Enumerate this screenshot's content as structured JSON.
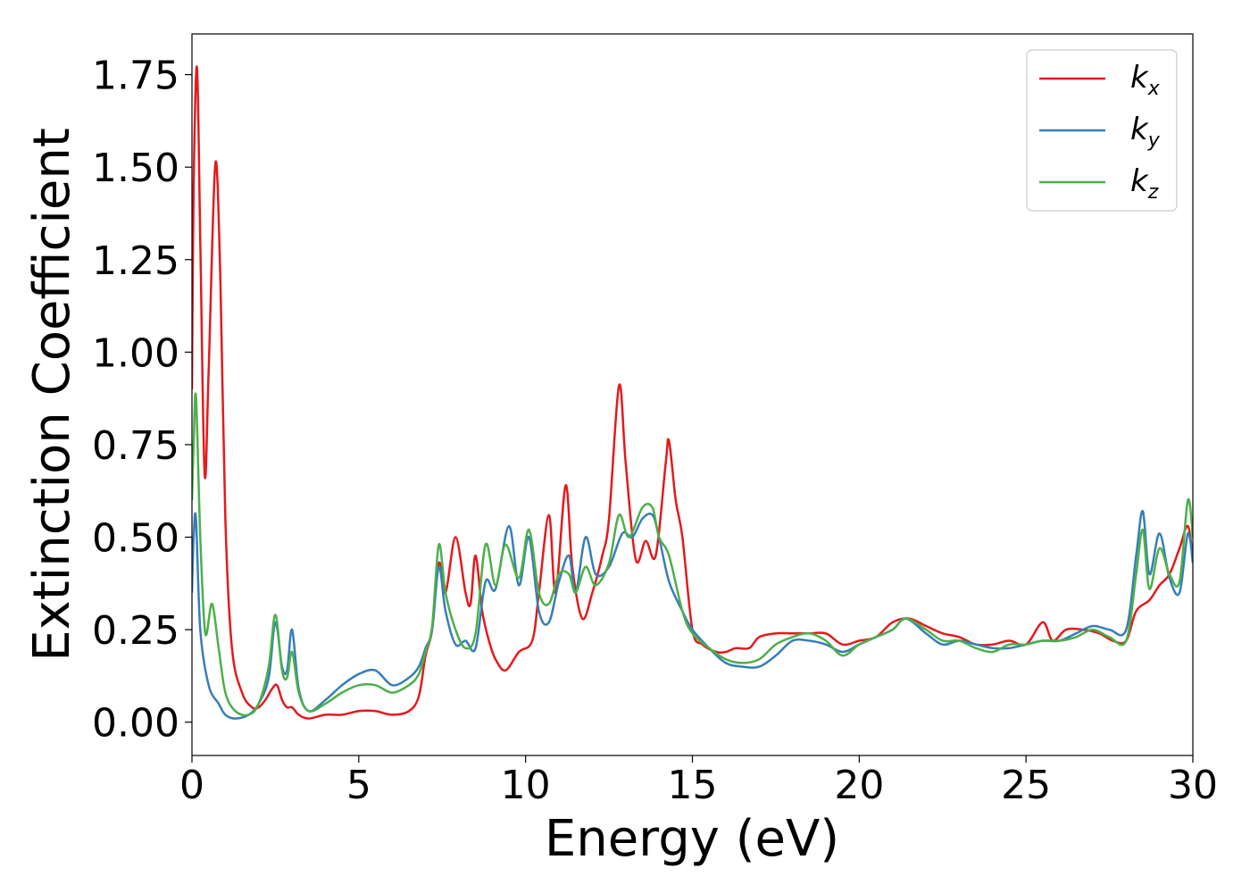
{
  "chart_data": {
    "type": "line",
    "xlabel": "Energy (eV)",
    "ylabel": "Extinction Coefficient",
    "xlim": [
      0,
      30
    ],
    "ylim": [
      -0.09,
      1.86
    ],
    "xticks": [
      0,
      5,
      10,
      15,
      20,
      25,
      30
    ],
    "xtick_labels": [
      "0",
      "5",
      "10",
      "15",
      "20",
      "25",
      "30"
    ],
    "yticks": [
      0,
      0.25,
      0.5,
      0.75,
      1.0,
      1.25,
      1.5,
      1.75
    ],
    "ytick_labels": [
      "0.00",
      "0.25",
      "0.50",
      "0.75",
      "1.00",
      "1.25",
      "1.50",
      "1.75"
    ],
    "grid": false,
    "legend_position": "top-right",
    "series": [
      {
        "name": "k_x",
        "legend_base": "k",
        "legend_sub": "x",
        "color": "#e41a1c",
        "points": [
          [
            0,
            0.9
          ],
          [
            0.05,
            1.45
          ],
          [
            0.15,
            1.77
          ],
          [
            0.25,
            1.3
          ],
          [
            0.38,
            0.67
          ],
          [
            0.5,
            0.95
          ],
          [
            0.7,
            1.51
          ],
          [
            0.85,
            1.2
          ],
          [
            1.0,
            0.55
          ],
          [
            1.2,
            0.2
          ],
          [
            1.5,
            0.08
          ],
          [
            1.8,
            0.04
          ],
          [
            2.0,
            0.04
          ],
          [
            2.2,
            0.06
          ],
          [
            2.4,
            0.09
          ],
          [
            2.55,
            0.1
          ],
          [
            2.7,
            0.06
          ],
          [
            2.85,
            0.04
          ],
          [
            3.0,
            0.04
          ],
          [
            3.2,
            0.02
          ],
          [
            3.5,
            0.01
          ],
          [
            4.0,
            0.02
          ],
          [
            4.5,
            0.02
          ],
          [
            5.0,
            0.03
          ],
          [
            5.5,
            0.03
          ],
          [
            6.0,
            0.02
          ],
          [
            6.5,
            0.03
          ],
          [
            6.8,
            0.07
          ],
          [
            7.0,
            0.18
          ],
          [
            7.2,
            0.25
          ],
          [
            7.4,
            0.43
          ],
          [
            7.6,
            0.35
          ],
          [
            7.9,
            0.5
          ],
          [
            8.2,
            0.35
          ],
          [
            8.35,
            0.32
          ],
          [
            8.5,
            0.45
          ],
          [
            8.7,
            0.3
          ],
          [
            8.9,
            0.22
          ],
          [
            9.1,
            0.17
          ],
          [
            9.4,
            0.14
          ],
          [
            9.8,
            0.19
          ],
          [
            10.2,
            0.22
          ],
          [
            10.4,
            0.35
          ],
          [
            10.7,
            0.56
          ],
          [
            10.9,
            0.35
          ],
          [
            11.2,
            0.64
          ],
          [
            11.4,
            0.42
          ],
          [
            11.7,
            0.28
          ],
          [
            12.0,
            0.35
          ],
          [
            12.3,
            0.45
          ],
          [
            12.5,
            0.55
          ],
          [
            12.8,
            0.91
          ],
          [
            13.0,
            0.7
          ],
          [
            13.3,
            0.44
          ],
          [
            13.6,
            0.49
          ],
          [
            13.9,
            0.45
          ],
          [
            14.2,
            0.7
          ],
          [
            14.3,
            0.76
          ],
          [
            14.5,
            0.6
          ],
          [
            14.7,
            0.5
          ],
          [
            15.0,
            0.25
          ],
          [
            15.3,
            0.21
          ],
          [
            15.7,
            0.19
          ],
          [
            16.0,
            0.19
          ],
          [
            16.3,
            0.2
          ],
          [
            16.7,
            0.2
          ],
          [
            17.0,
            0.23
          ],
          [
            17.5,
            0.24
          ],
          [
            18.0,
            0.24
          ],
          [
            18.5,
            0.24
          ],
          [
            19.0,
            0.24
          ],
          [
            19.5,
            0.21
          ],
          [
            20.0,
            0.22
          ],
          [
            20.5,
            0.23
          ],
          [
            21.0,
            0.27
          ],
          [
            21.5,
            0.28
          ],
          [
            22.0,
            0.26
          ],
          [
            22.5,
            0.24
          ],
          [
            23.0,
            0.23
          ],
          [
            23.5,
            0.21
          ],
          [
            24.0,
            0.21
          ],
          [
            24.5,
            0.22
          ],
          [
            25.0,
            0.21
          ],
          [
            25.5,
            0.27
          ],
          [
            25.8,
            0.22
          ],
          [
            26.2,
            0.25
          ],
          [
            26.7,
            0.25
          ],
          [
            27.2,
            0.24
          ],
          [
            27.6,
            0.22
          ],
          [
            28.0,
            0.22
          ],
          [
            28.3,
            0.3
          ],
          [
            28.7,
            0.33
          ],
          [
            29.0,
            0.37
          ],
          [
            29.3,
            0.4
          ],
          [
            29.6,
            0.47
          ],
          [
            29.85,
            0.53
          ],
          [
            30.0,
            0.44
          ]
        ]
      },
      {
        "name": "k_y",
        "legend_base": "k",
        "legend_sub": "y",
        "color": "#377eb8",
        "points": [
          [
            0,
            0.35
          ],
          [
            0.05,
            0.5
          ],
          [
            0.12,
            0.55
          ],
          [
            0.25,
            0.25
          ],
          [
            0.5,
            0.1
          ],
          [
            0.8,
            0.05
          ],
          [
            1.0,
            0.02
          ],
          [
            1.3,
            0.01
          ],
          [
            1.7,
            0.02
          ],
          [
            2.0,
            0.05
          ],
          [
            2.3,
            0.12
          ],
          [
            2.5,
            0.27
          ],
          [
            2.7,
            0.15
          ],
          [
            2.85,
            0.14
          ],
          [
            3.0,
            0.25
          ],
          [
            3.2,
            0.09
          ],
          [
            3.5,
            0.03
          ],
          [
            4.0,
            0.06
          ],
          [
            4.5,
            0.1
          ],
          [
            5.0,
            0.13
          ],
          [
            5.5,
            0.14
          ],
          [
            6.0,
            0.1
          ],
          [
            6.5,
            0.12
          ],
          [
            6.8,
            0.15
          ],
          [
            7.0,
            0.2
          ],
          [
            7.2,
            0.25
          ],
          [
            7.4,
            0.42
          ],
          [
            7.6,
            0.3
          ],
          [
            7.9,
            0.21
          ],
          [
            8.2,
            0.22
          ],
          [
            8.5,
            0.2
          ],
          [
            8.8,
            0.38
          ],
          [
            9.1,
            0.36
          ],
          [
            9.5,
            0.53
          ],
          [
            9.8,
            0.37
          ],
          [
            10.1,
            0.5
          ],
          [
            10.4,
            0.3
          ],
          [
            10.7,
            0.27
          ],
          [
            11.0,
            0.38
          ],
          [
            11.3,
            0.45
          ],
          [
            11.5,
            0.35
          ],
          [
            11.8,
            0.5
          ],
          [
            12.1,
            0.4
          ],
          [
            12.5,
            0.42
          ],
          [
            12.9,
            0.51
          ],
          [
            13.2,
            0.5
          ],
          [
            13.5,
            0.55
          ],
          [
            13.8,
            0.56
          ],
          [
            14.0,
            0.5
          ],
          [
            14.3,
            0.38
          ],
          [
            14.7,
            0.3
          ],
          [
            15.0,
            0.25
          ],
          [
            15.5,
            0.2
          ],
          [
            16.0,
            0.16
          ],
          [
            16.5,
            0.15
          ],
          [
            17.0,
            0.15
          ],
          [
            17.5,
            0.18
          ],
          [
            18.0,
            0.22
          ],
          [
            18.5,
            0.22
          ],
          [
            19.0,
            0.21
          ],
          [
            19.5,
            0.19
          ],
          [
            20.0,
            0.21
          ],
          [
            20.5,
            0.23
          ],
          [
            21.0,
            0.25
          ],
          [
            21.4,
            0.28
          ],
          [
            22.0,
            0.24
          ],
          [
            22.5,
            0.21
          ],
          [
            23.0,
            0.22
          ],
          [
            23.5,
            0.21
          ],
          [
            24.0,
            0.2
          ],
          [
            24.5,
            0.2
          ],
          [
            25.0,
            0.21
          ],
          [
            25.5,
            0.22
          ],
          [
            26.0,
            0.22
          ],
          [
            26.5,
            0.24
          ],
          [
            27.0,
            0.26
          ],
          [
            27.5,
            0.25
          ],
          [
            28.0,
            0.25
          ],
          [
            28.3,
            0.45
          ],
          [
            28.5,
            0.57
          ],
          [
            28.7,
            0.4
          ],
          [
            29.0,
            0.51
          ],
          [
            29.3,
            0.39
          ],
          [
            29.6,
            0.35
          ],
          [
            29.85,
            0.51
          ],
          [
            30.0,
            0.43
          ]
        ]
      },
      {
        "name": "k_z",
        "legend_base": "k",
        "legend_sub": "z",
        "color": "#4daf4a",
        "points": [
          [
            0,
            0.6
          ],
          [
            0.05,
            0.75
          ],
          [
            0.12,
            0.88
          ],
          [
            0.25,
            0.5
          ],
          [
            0.4,
            0.24
          ],
          [
            0.6,
            0.32
          ],
          [
            0.8,
            0.2
          ],
          [
            1.0,
            0.08
          ],
          [
            1.3,
            0.03
          ],
          [
            1.7,
            0.02
          ],
          [
            2.0,
            0.05
          ],
          [
            2.3,
            0.15
          ],
          [
            2.5,
            0.29
          ],
          [
            2.7,
            0.14
          ],
          [
            2.85,
            0.12
          ],
          [
            3.0,
            0.19
          ],
          [
            3.2,
            0.08
          ],
          [
            3.5,
            0.03
          ],
          [
            4.0,
            0.05
          ],
          [
            4.5,
            0.08
          ],
          [
            5.0,
            0.1
          ],
          [
            5.5,
            0.1
          ],
          [
            6.0,
            0.08
          ],
          [
            6.5,
            0.1
          ],
          [
            6.8,
            0.13
          ],
          [
            7.0,
            0.19
          ],
          [
            7.2,
            0.26
          ],
          [
            7.4,
            0.48
          ],
          [
            7.6,
            0.35
          ],
          [
            7.9,
            0.25
          ],
          [
            8.2,
            0.2
          ],
          [
            8.5,
            0.24
          ],
          [
            8.8,
            0.48
          ],
          [
            9.1,
            0.37
          ],
          [
            9.4,
            0.48
          ],
          [
            9.8,
            0.39
          ],
          [
            10.1,
            0.52
          ],
          [
            10.4,
            0.35
          ],
          [
            10.7,
            0.32
          ],
          [
            11.0,
            0.4
          ],
          [
            11.3,
            0.4
          ],
          [
            11.5,
            0.35
          ],
          [
            11.8,
            0.42
          ],
          [
            12.1,
            0.37
          ],
          [
            12.5,
            0.43
          ],
          [
            12.8,
            0.56
          ],
          [
            13.1,
            0.5
          ],
          [
            13.5,
            0.58
          ],
          [
            13.8,
            0.58
          ],
          [
            14.0,
            0.5
          ],
          [
            14.3,
            0.45
          ],
          [
            14.7,
            0.3
          ],
          [
            15.0,
            0.24
          ],
          [
            15.5,
            0.2
          ],
          [
            16.0,
            0.17
          ],
          [
            16.5,
            0.16
          ],
          [
            17.0,
            0.17
          ],
          [
            17.5,
            0.21
          ],
          [
            18.0,
            0.23
          ],
          [
            18.5,
            0.24
          ],
          [
            19.0,
            0.22
          ],
          [
            19.5,
            0.18
          ],
          [
            20.0,
            0.21
          ],
          [
            20.5,
            0.23
          ],
          [
            21.0,
            0.25
          ],
          [
            21.4,
            0.28
          ],
          [
            22.0,
            0.25
          ],
          [
            22.5,
            0.22
          ],
          [
            23.0,
            0.22
          ],
          [
            23.5,
            0.2
          ],
          [
            24.0,
            0.19
          ],
          [
            24.5,
            0.21
          ],
          [
            25.0,
            0.21
          ],
          [
            25.5,
            0.22
          ],
          [
            26.0,
            0.22
          ],
          [
            26.5,
            0.23
          ],
          [
            27.0,
            0.25
          ],
          [
            27.5,
            0.23
          ],
          [
            28.0,
            0.22
          ],
          [
            28.3,
            0.4
          ],
          [
            28.5,
            0.52
          ],
          [
            28.7,
            0.36
          ],
          [
            29.0,
            0.47
          ],
          [
            29.3,
            0.4
          ],
          [
            29.6,
            0.38
          ],
          [
            29.85,
            0.6
          ],
          [
            30.0,
            0.5
          ]
        ]
      }
    ]
  }
}
